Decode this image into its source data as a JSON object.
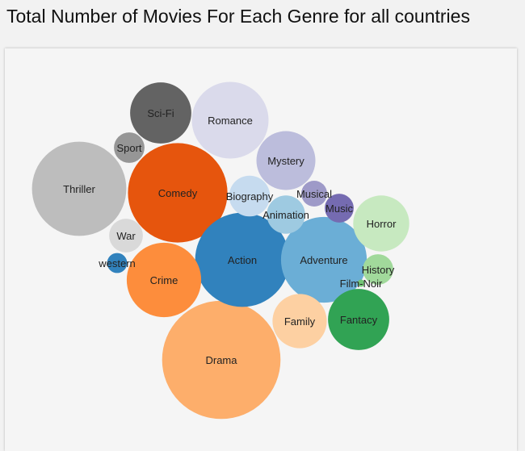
{
  "page": {
    "title": "Total Number of Movies For Each Genre for all countries"
  },
  "chart_data": {
    "type": "bubble",
    "title": "Total Number of Movies For Each Genre for all countries",
    "bubbles": [
      {
        "name": "Drama",
        "value": 2100,
        "color": "#fdae6b"
      },
      {
        "name": "Comedy",
        "value": 1480,
        "color": "#e6550d"
      },
      {
        "name": "Action",
        "value": 1330,
        "color": "#3182bd"
      },
      {
        "name": "Thriller",
        "value": 1330,
        "color": "#bdbdbd"
      },
      {
        "name": "Adventure",
        "value": 1100,
        "color": "#6baed6"
      },
      {
        "name": "Romance",
        "value": 880,
        "color": "#dadaeb"
      },
      {
        "name": "Crime",
        "value": 830,
        "color": "#fd8d3c"
      },
      {
        "name": "Horror",
        "value": 470,
        "color": "#c7e9c0"
      },
      {
        "name": "Fantacy",
        "value": 560,
        "color": "#31a354"
      },
      {
        "name": "Sci-Fi",
        "value": 560,
        "color": "#636363"
      },
      {
        "name": "Mystery",
        "value": 520,
        "color": "#bcbddc"
      },
      {
        "name": "Family",
        "value": 440,
        "color": "#fdd0a2"
      },
      {
        "name": "Biography",
        "value": 250,
        "color": "#c6dbef"
      },
      {
        "name": "Animation",
        "value": 220,
        "color": "#9ecae1"
      },
      {
        "name": "War",
        "value": 170,
        "color": "#d9d9d9"
      },
      {
        "name": "Sport",
        "value": 140,
        "color": "#969696"
      },
      {
        "name": "History",
        "value": 140,
        "color": "#a1d99b"
      },
      {
        "name": "Music",
        "value": 125,
        "color": "#756bb1"
      },
      {
        "name": "Musical",
        "value": 100,
        "color": "#9e9ac8"
      },
      {
        "name": "western",
        "value": 60,
        "color": "#3182bd"
      },
      {
        "name": "Film-Noir",
        "value": 8,
        "color": "#74c476"
      }
    ]
  }
}
